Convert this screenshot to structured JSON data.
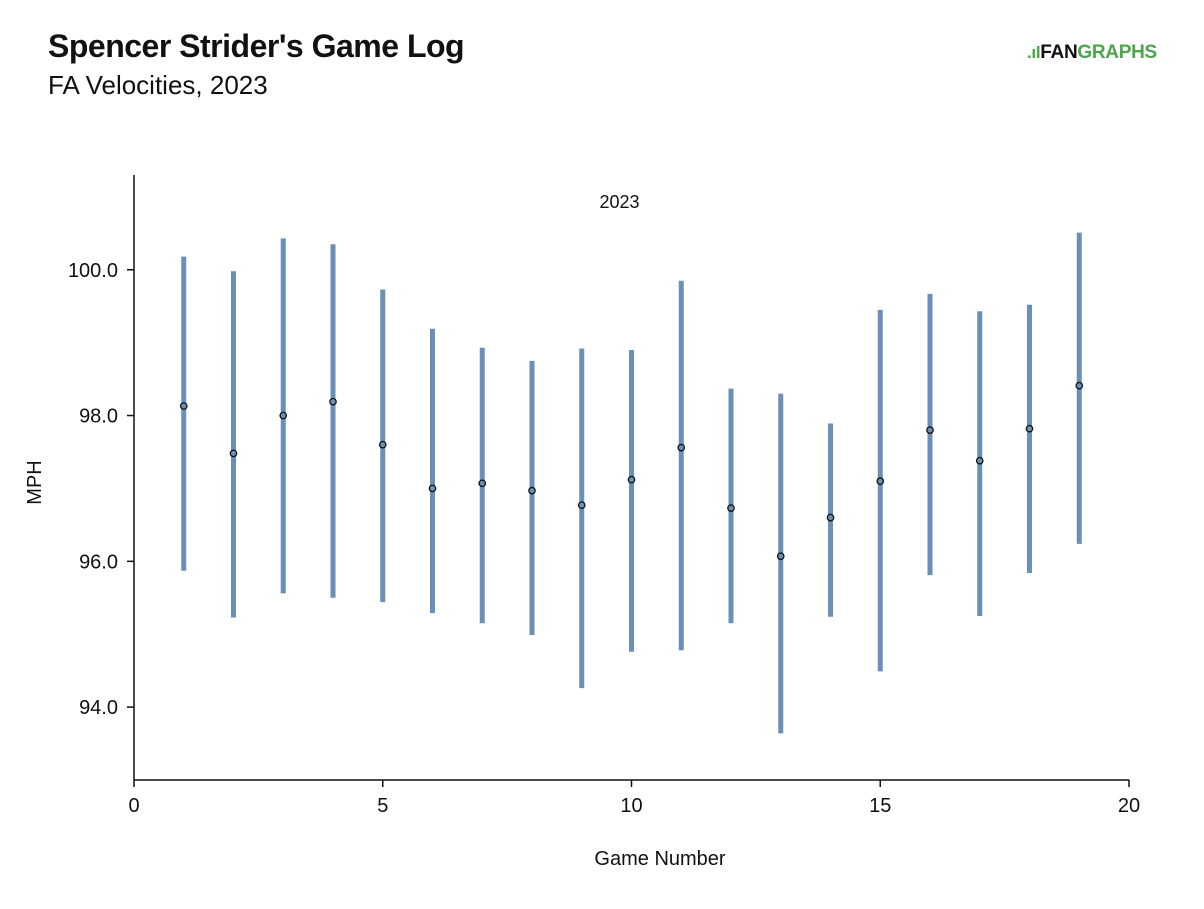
{
  "header": {
    "title": "Spencer Strider's Game Log",
    "subtitle": "FA Velocities, 2023",
    "logo_mark": ".ıl",
    "logo_fan": "FAN",
    "logo_graphs": "GRAPHS"
  },
  "colors": {
    "bar": "#6a90b8",
    "point_fill": "#6a90b8",
    "point_stroke": "#111111",
    "axis": "#111111",
    "logo_green": "#4aa64a"
  },
  "chart_data": {
    "type": "scatter",
    "title": "",
    "panel_label": "2023",
    "xlabel": "Game Number",
    "ylabel": "MPH",
    "xlim": [
      0,
      20
    ],
    "ylim": [
      93.0,
      101.3
    ],
    "xticks": [
      0,
      5,
      10,
      15,
      20
    ],
    "xtick_labels": [
      "0",
      "5",
      "10",
      "15",
      "20"
    ],
    "yticks": [
      94.0,
      96.0,
      98.0,
      100.0
    ],
    "ytick_labels": [
      "94.0",
      "96.0",
      "98.0",
      "100.0"
    ],
    "grid": false,
    "series": [
      {
        "x": [
          1,
          2,
          3,
          4,
          5,
          6,
          7,
          8,
          9,
          10,
          11,
          12,
          13,
          14,
          15,
          16,
          17,
          18,
          19
        ],
        "y": [
          98.13,
          97.48,
          98.0,
          98.19,
          97.6,
          97.0,
          97.07,
          96.97,
          96.77,
          97.12,
          97.56,
          96.73,
          96.07,
          96.6,
          97.1,
          97.8,
          97.38,
          97.82,
          98.41
        ],
        "low": [
          95.87,
          95.23,
          95.56,
          95.5,
          95.44,
          95.29,
          95.15,
          94.99,
          94.26,
          94.76,
          94.78,
          95.15,
          93.64,
          95.24,
          94.49,
          95.81,
          95.25,
          95.84,
          96.24
        ],
        "high": [
          100.18,
          99.98,
          100.43,
          100.35,
          99.73,
          99.19,
          98.93,
          98.75,
          98.92,
          98.9,
          99.85,
          98.37,
          98.3,
          97.89,
          99.45,
          99.67,
          99.43,
          99.52,
          100.51
        ]
      }
    ]
  }
}
